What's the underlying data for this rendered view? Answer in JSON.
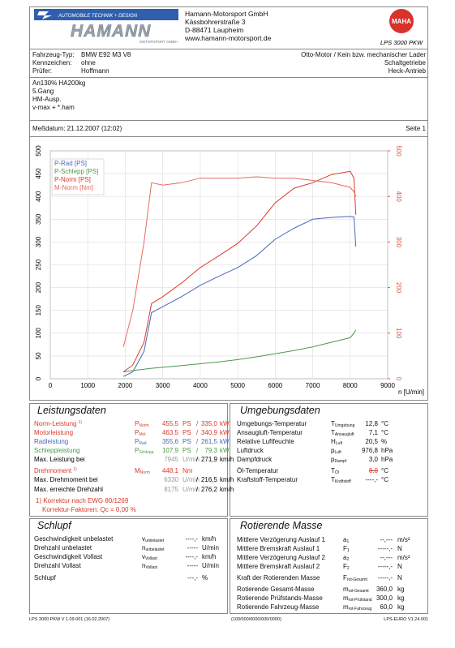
{
  "header": {
    "logo": {
      "tagline": "AUTOMOBILE TECHNIK + DESIGN",
      "name": "HAMANN",
      "sub": "MOTORSPORT GMBH"
    },
    "address": [
      "Hamann-Motorsport GmbH",
      "Kässbohrerstraße 3",
      "D-88471 Laupheim",
      "www.hamann-motorsport.de"
    ],
    "brand": {
      "name": "MAHA",
      "model": "LPS 3000 PKW"
    }
  },
  "vehicle": {
    "rows": [
      [
        "Fahrzeug-Typ:",
        "BMW E92 M3 V8"
      ],
      [
        "Kennzeichen:",
        "ohne"
      ],
      [
        "Prüfer:",
        "Hoffmann"
      ]
    ],
    "right": [
      "Otto-Motor / Kein bzw. mechanischer Lader",
      "Schaltgetriebe",
      "Heck-Antrieb"
    ]
  },
  "notes": [
    "An130% HA200kg",
    "5.Gang",
    "HM-Ausp.",
    "v-max + *.ham"
  ],
  "date": "Meßdatum: 21.12.2007 (12:02)",
  "page": "Seite 1",
  "chart_data": {
    "type": "line",
    "x_label": "n [U/min]",
    "x": [
      1950,
      2200,
      2500,
      2700,
      3000,
      3500,
      4000,
      4500,
      5000,
      5500,
      6000,
      6500,
      7000,
      7500,
      8000,
      8100,
      8150
    ],
    "series": [
      {
        "name": "P-Rad [PS]",
        "color": "#4a66b8",
        "values": [
          5,
          15,
          60,
          145,
          158,
          180,
          205,
          225,
          244,
          270,
          306,
          330,
          350,
          354,
          356,
          355,
          290
        ]
      },
      {
        "name": "P-Schlepp [PS]",
        "color": "#4a9a4a",
        "values": [
          15,
          18,
          21,
          23,
          25,
          29,
          33,
          37,
          42,
          48,
          55,
          62,
          70,
          80,
          90,
          100,
          107
        ]
      },
      {
        "name": "P-Norm [PS]",
        "color": "#d83a2a",
        "values": [
          15,
          30,
          80,
          165,
          180,
          210,
          244,
          270,
          297,
          335,
          386,
          418,
          430,
          448,
          455,
          440,
          360
        ]
      },
      {
        "name": "M-Norm [Nm]",
        "color": "#e86a5a",
        "axis": "y2",
        "values": [
          70,
          150,
          300,
          430,
          425,
          430,
          440,
          440,
          440,
          443,
          440,
          440,
          435,
          430,
          420,
          410,
          400
        ]
      }
    ],
    "xlim": [
      0,
      9000
    ],
    "xticks": [
      0,
      1000,
      2000,
      3000,
      4000,
      5000,
      6000,
      7000,
      8000,
      9000
    ],
    "ylim": [
      0,
      500
    ],
    "yticks": [
      0,
      50,
      100,
      150,
      200,
      250,
      300,
      350,
      400,
      450,
      500
    ],
    "y2lim": [
      0,
      500
    ],
    "y2ticks": [
      0,
      100,
      200,
      300,
      400,
      500
    ],
    "y2_color": "#e05040",
    "grid": true,
    "legend": "top-left"
  },
  "leistung": {
    "title": "Leistungsdaten",
    "rows": [
      {
        "label": "Norm-Leistung",
        "note": "1)",
        "symbol": "P",
        "sub": "Norm",
        "value": "455,5",
        "unit": "PS",
        "sep": "/",
        "value2": "335,0",
        "unit2": "kW",
        "color": "#d83a2a"
      },
      {
        "label": "Motorleistung",
        "symbol": "P",
        "sub": "Mot",
        "value": "463,5",
        "unit": "PS",
        "sep": "/",
        "value2": "340,9",
        "unit2": "kW",
        "color": "#d83a2a"
      },
      {
        "label": "Radleistung",
        "symbol": "P",
        "sub": "Rad",
        "value": "355,6",
        "unit": "PS",
        "sep": "/",
        "value2": "261,5",
        "unit2": "kW",
        "color": "#4a66b8"
      },
      {
        "label": "Schleppleistung",
        "symbol": "P",
        "sub": "Schlepp",
        "value": "107,9",
        "unit": "PS",
        "sep": "/",
        "value2": "79,3",
        "unit2": "kW",
        "color": "#4a9a4a"
      },
      {
        "label": "Max. Leistung bei",
        "value": "7945",
        "unit": "U/min",
        "sep": "/",
        "value2": "271,9",
        "unit2": "km/h",
        "color": "#000000",
        "value_color": "#999999"
      },
      {
        "label": "Drehmoment",
        "note": "1)",
        "symbol": "M",
        "sub": "Norm",
        "value": "448,1",
        "unit": "Nm",
        "color": "#d83a2a"
      },
      {
        "label": "Max. Drehmoment bei",
        "value": "6330",
        "unit": "U/min",
        "sep": "/",
        "value2": "216,5",
        "unit2": "km/h",
        "color": "#000000",
        "value_color": "#999999"
      },
      {
        "label": "Max. erreichte Drehzahl",
        "value": "8175",
        "unit": "U/min",
        "sep": "/",
        "value2": "276,2",
        "unit2": "km/h",
        "color": "#000000",
        "value_color": "#999999"
      }
    ],
    "footnotes": [
      "1) Korrektur nach EWG 80/1269",
      "Korrektur-Faktoren: Qc =  0,00 %"
    ]
  },
  "umgebung": {
    "title": "Umgebungsdaten",
    "rows": [
      {
        "label": "Umgebungs-Temperatur",
        "symbol": "T",
        "sub": "Umgebung",
        "value": "12,8",
        "unit": "°C"
      },
      {
        "label": "Ansaugluft-Temperatur",
        "symbol": "T",
        "sub": "Ansaugluft",
        "value": "7,1",
        "unit": "°C"
      },
      {
        "label": "Relative Luftfeuchte",
        "symbol": "H",
        "sub": "Luft",
        "value": "20,5",
        "unit": "%"
      },
      {
        "label": "Luftdruck",
        "symbol": "p",
        "sub": "Luft",
        "value": "976,8",
        "unit": "hPa"
      },
      {
        "label": "Dampfdruck",
        "symbol": "p",
        "sub": "Dampf",
        "value": "3,0",
        "unit": "hPa"
      },
      {
        "label": "Öl-Temperatur",
        "symbol": "T",
        "sub": "Öl",
        "value": "8,0",
        "unit": "°C",
        "strike": true
      },
      {
        "label": "Kraftstoff-Temperatur",
        "symbol": "T",
        "sub": "Kraftstoff",
        "value": "----,-",
        "unit": "°C"
      }
    ]
  },
  "schlupf": {
    "title": "Schlupf",
    "rows": [
      {
        "label": "Geschwindigkeit unbelastet",
        "symbol": "v",
        "sub": "unbelastet",
        "value": "----,-",
        "unit": "km/h"
      },
      {
        "label": "Drehzahl unbelastet",
        "symbol": "n",
        "sub": "unbelastet",
        "value": "-----",
        "unit": "U/min"
      },
      {
        "label": "Geschwindigkeit Vollast",
        "symbol": "v",
        "sub": "Vollast",
        "value": "----,-",
        "unit": "km/h"
      },
      {
        "label": "Drehzahl Vollast",
        "symbol": "n",
        "sub": "Vollast",
        "value": "-----",
        "unit": "U/min"
      },
      {
        "label": "Schlupf",
        "value": "---,-",
        "unit": "%"
      }
    ]
  },
  "rotierend": {
    "title": "Rotierende Masse",
    "rows": [
      {
        "label": "Mittlere Verzögerung Auslauf 1",
        "symbol": "a",
        "sub": "1",
        "value": "--,---",
        "unit": "m/s²"
      },
      {
        "label": "Mittlere Bremskraft Auslauf 1",
        "symbol": "F",
        "sub": "1",
        "value": "-----,-",
        "unit": "N"
      },
      {
        "label": "Mittlere Verzögerung Auslauf 2",
        "symbol": "a",
        "sub": "2",
        "value": "--,---",
        "unit": "m/s²"
      },
      {
        "label": "Mittlere Bremskraft Auslauf 2",
        "symbol": "F",
        "sub": "2",
        "value": "-----,-",
        "unit": "N"
      },
      {
        "label": "Kraft der Rotierenden Masse",
        "symbol": "F",
        "sub": "rot-Gesamt",
        "value": "-----,-",
        "unit": "N"
      },
      {
        "label": "Rotierende Gesamt-Masse",
        "symbol": "m",
        "sub": "rot-Gesamt",
        "value": "360,0",
        "unit": "kg"
      },
      {
        "label": "Rotierende Prüfstands-Masse",
        "symbol": "m",
        "sub": "rot-Prüfstand",
        "value": "300,0",
        "unit": "kg"
      },
      {
        "label": "Rotierende Fahrzeug-Masse",
        "symbol": "m",
        "sub": "rot-Fahrzeug",
        "value": "60,0",
        "unit": "kg"
      }
    ]
  },
  "footer": [
    "LPS 3000 PKW V 1.09.001 (16.02.2007)",
    "(100/000/0000/000/0000)",
    "LPS-EURO V1.24.001"
  ]
}
